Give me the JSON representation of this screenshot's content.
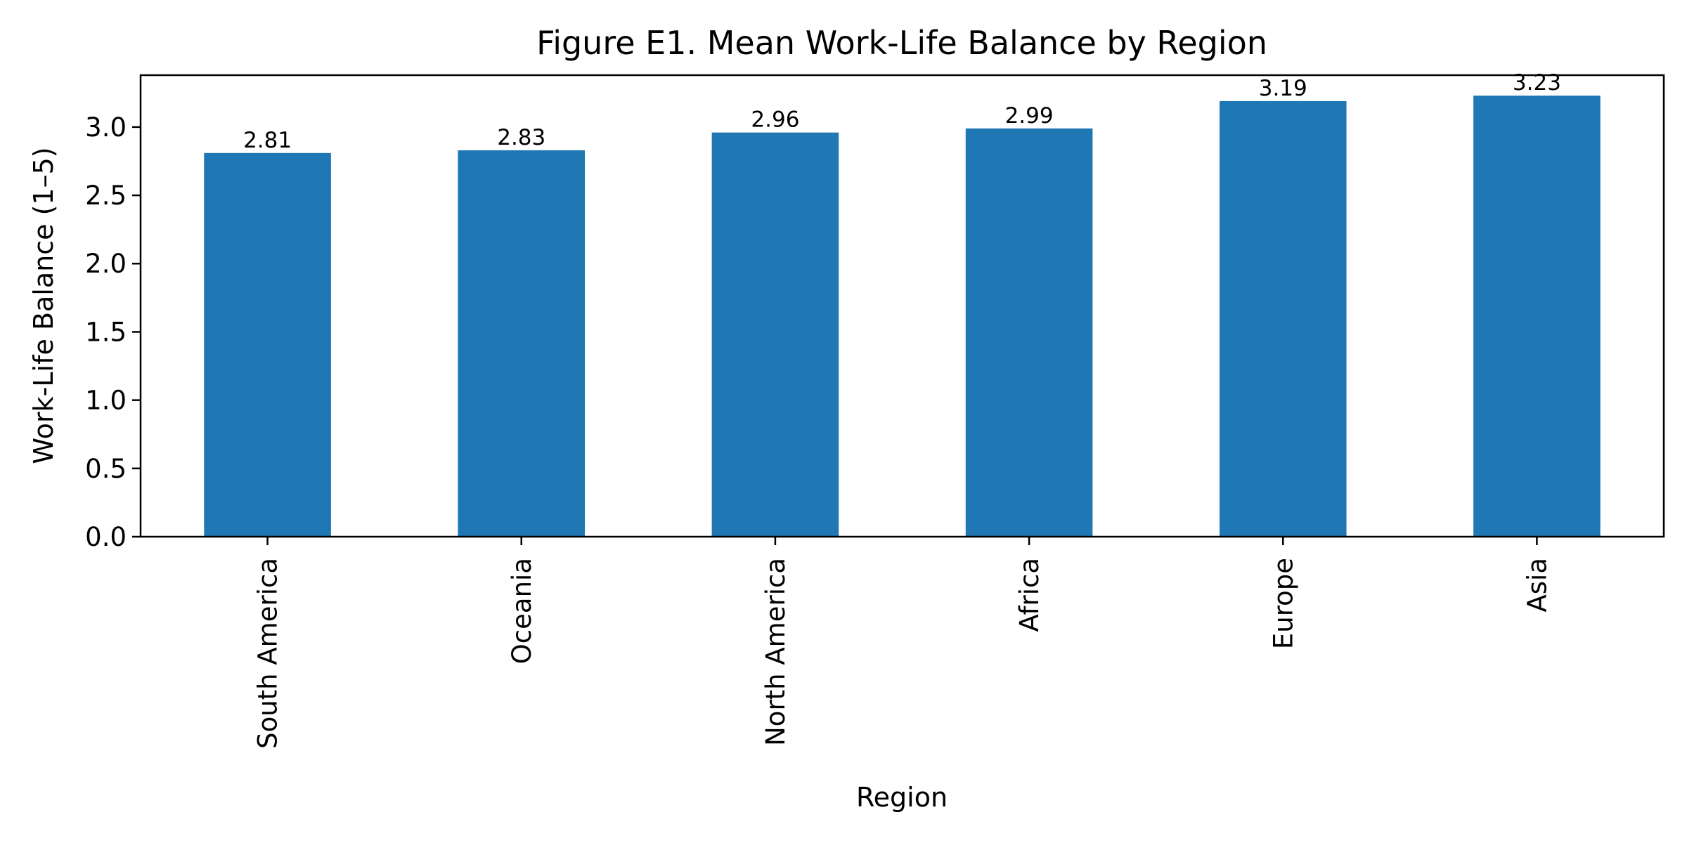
{
  "chart_data": {
    "type": "bar",
    "title": "Figure E1. Mean Work-Life Balance by Region",
    "xlabel": "Region",
    "ylabel": "Work-Life Balance (1–5)",
    "categories": [
      "South America",
      "Oceania",
      "North America",
      "Africa",
      "Europe",
      "Asia"
    ],
    "values": [
      2.81,
      2.83,
      2.96,
      2.99,
      3.19,
      3.23
    ],
    "data_labels": [
      "2.81",
      "2.83",
      "2.96",
      "2.99",
      "3.19",
      "3.23"
    ],
    "ylim": [
      0,
      3.38
    ],
    "yticks": [
      0.0,
      0.5,
      1.0,
      1.5,
      2.0,
      2.5,
      3.0
    ],
    "ytick_labels": [
      "0.0",
      "0.5",
      "1.0",
      "1.5",
      "2.0",
      "2.5",
      "3.0"
    ],
    "bar_color": "#1f77b4",
    "grid": false,
    "legend": "none"
  }
}
